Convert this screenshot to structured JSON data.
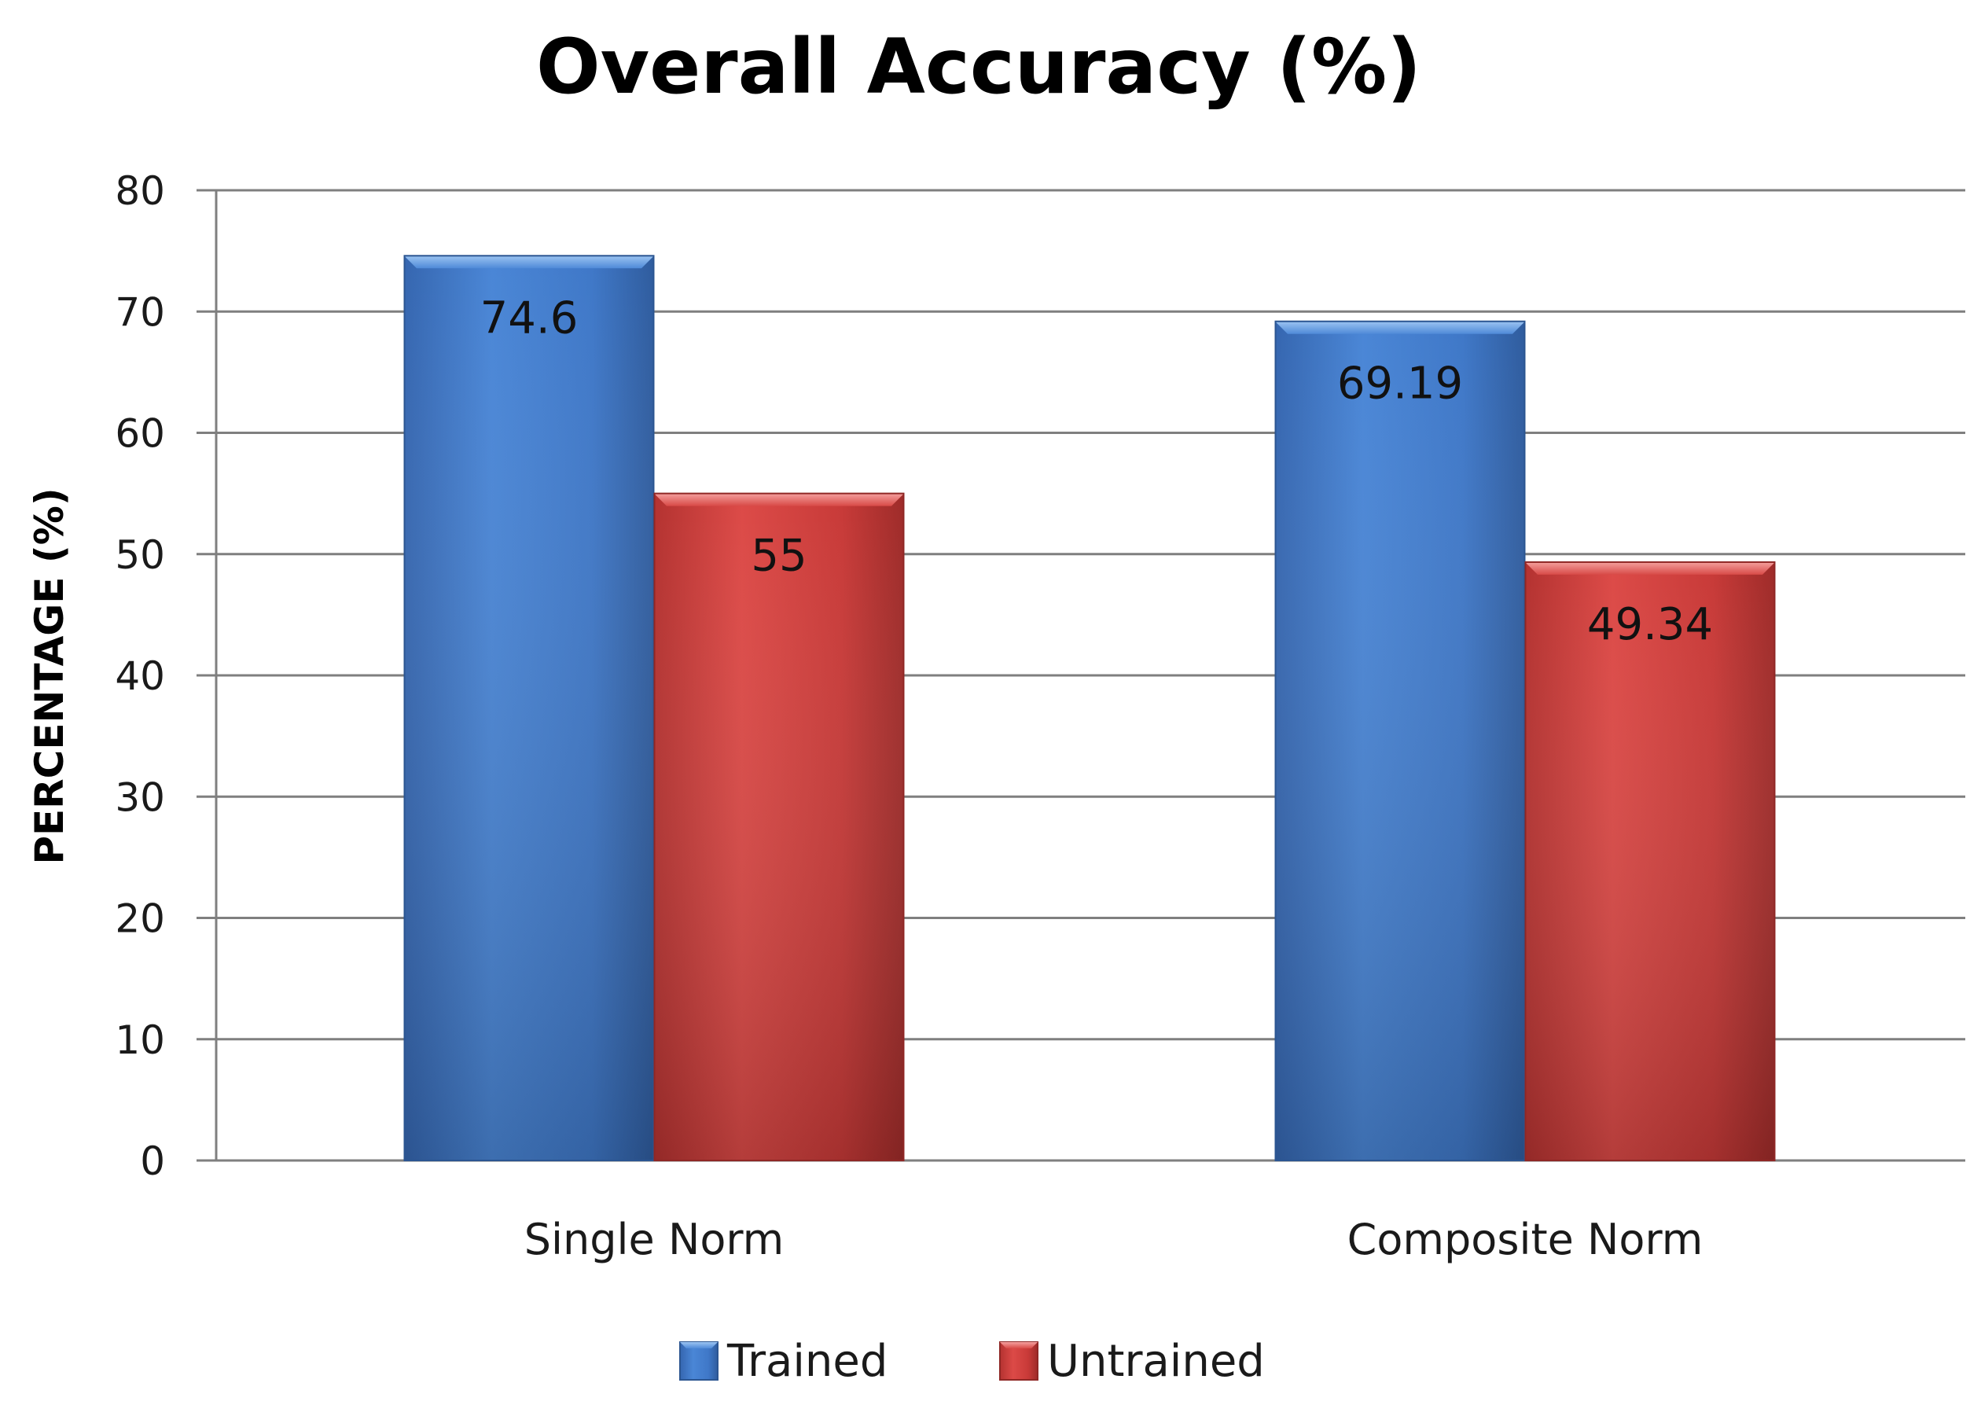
{
  "chart_data": {
    "type": "bar",
    "title": "Overall Accuracy (%)",
    "xlabel": "",
    "ylabel": "PERCENTAGE (%)",
    "categories": [
      "Single Norm",
      "Composite Norm"
    ],
    "series": [
      {
        "name": "Trained",
        "values": [
          74.6,
          69.19
        ],
        "color": "#3f78c8"
      },
      {
        "name": "Untrained",
        "values": [
          55,
          49.34
        ],
        "color": "#c83a38"
      }
    ],
    "data_labels": [
      [
        "74.6",
        "69.19"
      ],
      [
        "55",
        "49.34"
      ]
    ],
    "ylim": [
      0,
      80
    ],
    "yticks": [
      0,
      10,
      20,
      30,
      40,
      50,
      60,
      70,
      80
    ],
    "grid": true,
    "legend": "bottom"
  }
}
